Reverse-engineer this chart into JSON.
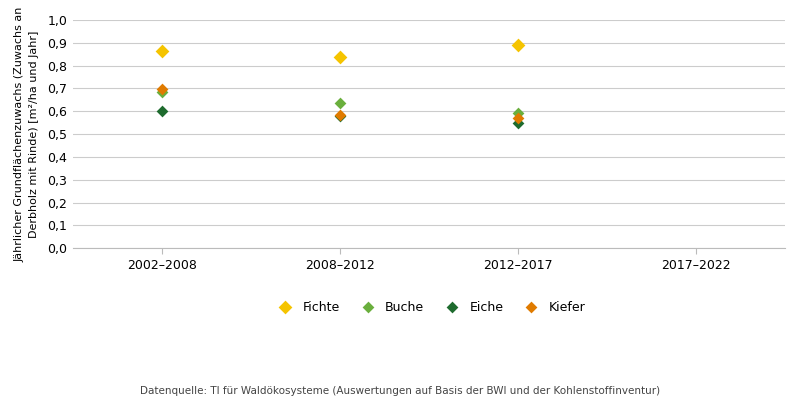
{
  "ylabel": "Jährlicher Grundflächenzuwachs (Zuwachs an\nDerbholz mit Rinde) [m²/ha und Jahr]",
  "source": "Datenquelle: TI für Waldökosysteme (Auswertungen auf Basis der BWI und der Kohlenstoffinventur)",
  "x_categories": [
    "2002–2008",
    "2008–2012",
    "2012–2017",
    "2017–2022"
  ],
  "x_positions": [
    0,
    1,
    2,
    3
  ],
  "ylim": [
    0.0,
    1.0
  ],
  "yticks": [
    0.0,
    0.1,
    0.2,
    0.3,
    0.4,
    0.5,
    0.6,
    0.7,
    0.8,
    0.9,
    1.0
  ],
  "series": {
    "Fichte": {
      "color": "#F5C400",
      "marker": "D",
      "markersize": 7,
      "values": [
        0.865,
        0.838,
        0.89,
        null
      ]
    },
    "Buche": {
      "color": "#6AAF3D",
      "marker": "D",
      "markersize": 6,
      "values": [
        0.685,
        0.635,
        0.593,
        null
      ]
    },
    "Eiche": {
      "color": "#1E6B2E",
      "marker": "D",
      "markersize": 6,
      "values": [
        0.603,
        0.578,
        0.547,
        null
      ]
    },
    "Kiefer": {
      "color": "#E07B00",
      "marker": "D",
      "markersize": 6,
      "values": [
        0.698,
        0.584,
        0.57,
        null
      ]
    }
  },
  "background_color": "#ffffff",
  "grid_color": "#cccccc",
  "tick_fontsize": 9,
  "ylabel_fontsize": 8,
  "legend_fontsize": 9,
  "source_fontsize": 7.5
}
